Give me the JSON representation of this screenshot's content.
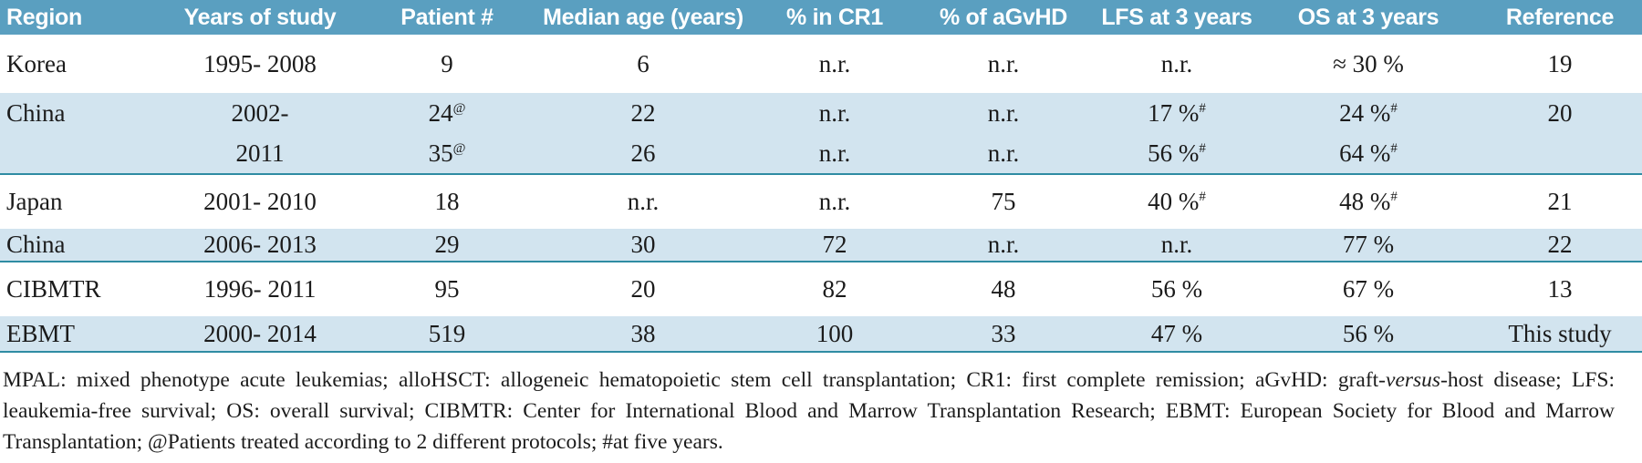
{
  "colors": {
    "header_bg": "#5a9fc0",
    "stripe_bg": "#d2e4ef",
    "separator": "#2f8ca3",
    "text": "#1b1b1b"
  },
  "table": {
    "columns": [
      "Region",
      "Years of study",
      "Patient #",
      "Median age (years)",
      "% in CR1",
      "% of aGvHD",
      "LFS at 3 years",
      "OS at 3 years",
      "Reference"
    ],
    "rows": [
      {
        "cells": [
          "Korea",
          "1995- 2008",
          "9",
          "6",
          "n.r.",
          "n.r.",
          "n.r.",
          "≈ 30 %",
          "19"
        ],
        "stripe": false,
        "border_bottom": false
      },
      {
        "cells": [
          "China",
          "2002-",
          "24^{@}",
          "22",
          "n.r.",
          "n.r.",
          "17 %^{#}",
          "24 %^{#}",
          "20"
        ],
        "stripe": true,
        "border_bottom": false
      },
      {
        "cells": [
          "",
          "2011",
          "35^{@}",
          "26",
          "n.r.",
          "n.r.",
          "56 %^{#}",
          "64 %^{#}",
          ""
        ],
        "stripe": true,
        "border_bottom": true
      },
      {
        "cells": [
          "Japan",
          "2001- 2010",
          "18",
          "n.r.",
          "n.r.",
          "75",
          "40 %^{#}",
          "48 %^{#}",
          "21"
        ],
        "stripe": false,
        "border_bottom": false
      },
      {
        "cells": [
          "China",
          "2006- 2013",
          "29",
          "30",
          "72",
          "n.r.",
          "n.r.",
          "77 %",
          "22"
        ],
        "stripe": true,
        "border_bottom": true
      },
      {
        "cells": [
          "CIBMTR",
          "1996- 2011",
          "95",
          "20",
          "82",
          "48",
          "56 %",
          "67 %",
          "13"
        ],
        "stripe": false,
        "border_bottom": false
      },
      {
        "cells": [
          "EBMT",
          "2000- 2014",
          "519",
          "38",
          "100",
          "33",
          "47 %",
          "56 %",
          "This study"
        ],
        "stripe": true,
        "border_bottom": true
      }
    ]
  },
  "footnote": {
    "text": "MPAL: mixed phenotype acute leukemias; alloHSCT: allogeneic hematopoietic stem cell transplantation; CR1: first complete remission; aGvHD: graft-*versus*-host disease; LFS: leaukemia-free survival; OS: overall survival; CIBMTR: Center for International Blood and Marrow Transplantation Research; EBMT: European Society for Blood and Marrow Transplantation; @Patients treated according to 2 different protocols; #at five years."
  }
}
